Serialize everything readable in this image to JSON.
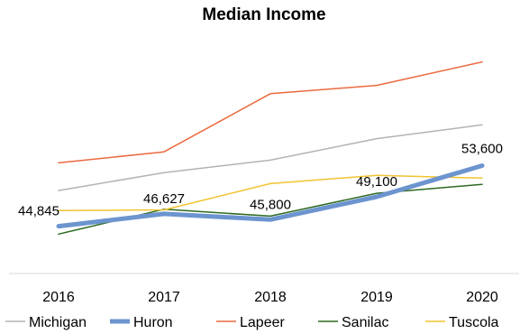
{
  "chart_data": {
    "type": "line",
    "title": "Median Income",
    "categories": [
      "2016",
      "2017",
      "2018",
      "2019",
      "2020"
    ],
    "ylim": [
      38000,
      65000
    ],
    "grid": false,
    "legend_position": "bottom",
    "series": [
      {
        "name": "Michigan",
        "color": "#b3b3b3",
        "width": 1.5,
        "values": [
          50000,
          52600,
          54400,
          57500,
          59500
        ]
      },
      {
        "name": "Huron",
        "color": "#6c94cf",
        "width": 5,
        "values": [
          44845,
          46627,
          45800,
          49100,
          53600
        ]
      },
      {
        "name": "Lapeer",
        "color": "#eb6a3f",
        "width": 1.5,
        "values": [
          54000,
          55600,
          64000,
          65200,
          68600
        ]
      },
      {
        "name": "Sanilac",
        "color": "#2e6a22",
        "width": 1.5,
        "values": [
          43700,
          47300,
          46300,
          49600,
          50900
        ]
      },
      {
        "name": "Tuscola",
        "color": "#f0c431",
        "width": 1.5,
        "values": [
          47100,
          47200,
          51000,
          52200,
          51800
        ]
      }
    ],
    "data_labels": [
      {
        "series": "Huron",
        "index": 0,
        "text": "44,845"
      },
      {
        "series": "Huron",
        "index": 1,
        "text": "46,627"
      },
      {
        "series": "Huron",
        "index": 2,
        "text": "45,800"
      },
      {
        "series": "Huron",
        "index": 3,
        "text": "49,100"
      },
      {
        "series": "Huron",
        "index": 4,
        "text": "53,600"
      }
    ]
  }
}
